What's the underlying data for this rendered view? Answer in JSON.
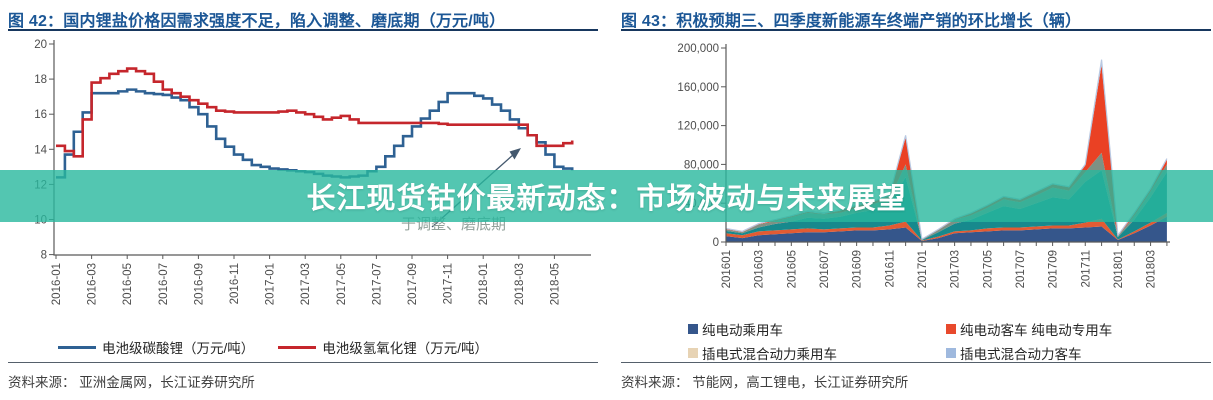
{
  "overlay": {
    "text": "长江现货钴价最新动态：市场波动与未来展望",
    "band_color": "rgba(40,184,157,0.80)"
  },
  "faded_note": "于调整、磨底期",
  "panels": [
    {
      "title": "图 42：国内锂盐价格因需求强度不足，陷入调整、磨底期（万元/吨）",
      "source": "资料来源： 亚洲金属网，长江证券研究所"
    },
    {
      "title": "图 43：积极预期三、四季度新能源车终端产销的环比增长（辆）",
      "source": "资料来源： 节能网，高工锂电，长江证券研究所"
    }
  ],
  "chart_data": [
    {
      "type": "line",
      "title": "图 42：国内锂盐价格因需求强度不足，陷入调整、磨底期（万元/吨）",
      "unit": "万元/吨",
      "grid": false,
      "legend_position": "bottom",
      "x": [
        "2016-01",
        "2016-02",
        "2016-03",
        "2016-04",
        "2016-05",
        "2016-06",
        "2016-07",
        "2016-08",
        "2016-09",
        "2016-10",
        "2016-11",
        "2016-12",
        "2017-01",
        "2017-02",
        "2017-03",
        "2017-04",
        "2017-05",
        "2017-06",
        "2017-07",
        "2017-08",
        "2017-09",
        "2017-10",
        "2017-11",
        "2017-12",
        "2018-01",
        "2018-02",
        "2018-03",
        "2018-04",
        "2018-05",
        "2018-06"
      ],
      "x_tick_labels": [
        "2016-01",
        "2016-03",
        "2016-05",
        "2016-07",
        "2016-09",
        "2016-11",
        "2017-01",
        "2017-03",
        "2017-05",
        "2017-07",
        "2017-09",
        "2017-11",
        "2018-01",
        "2018-03",
        "2018-05"
      ],
      "ylim": [
        8,
        20
      ],
      "yticks": [
        8,
        10,
        12,
        14,
        16,
        18,
        20
      ],
      "series": [
        {
          "name": "电池级碳酸锂（万元/吨）",
          "color": "#2e6193",
          "values": [
            12.4,
            15.0,
            17.2,
            17.2,
            17.4,
            17.2,
            17.1,
            16.8,
            16.0,
            14.6,
            13.7,
            13.1,
            12.9,
            12.8,
            12.7,
            12.5,
            12.4,
            12.5,
            13.0,
            14.2,
            15.3,
            16.2,
            17.2,
            17.2,
            16.9,
            16.2,
            15.2,
            14.4,
            13.0,
            12.8
          ]
        },
        {
          "name": "电池级氢氧化锂（万元/吨）",
          "color": "#c5262c",
          "values": [
            14.2,
            13.6,
            17.8,
            18.3,
            18.6,
            18.3,
            17.4,
            17.0,
            16.6,
            16.2,
            16.1,
            16.1,
            16.1,
            16.2,
            16.0,
            15.7,
            15.9,
            15.5,
            15.5,
            15.5,
            15.5,
            15.5,
            15.4,
            15.4,
            15.4,
            15.4,
            15.4,
            14.2,
            14.2,
            14.5
          ]
        }
      ],
      "legend": [
        {
          "label": "电池级碳酸锂（万元/吨）",
          "swatch": "#2e6193"
        },
        {
          "label": "电池级氢氧化锂（万元/吨）",
          "swatch": "#c5262c"
        }
      ],
      "annotations": [
        "arrow-pointing-to-2018-price-drop"
      ]
    },
    {
      "type": "area",
      "title": "图 43：积极预期三、四季度新能源车终端产销的环比增长（辆）",
      "unit": "辆",
      "stacked": true,
      "grid": false,
      "legend_position": "bottom",
      "x": [
        "201601",
        "201602",
        "201603",
        "201604",
        "201605",
        "201606",
        "201607",
        "201608",
        "201609",
        "201610",
        "201611",
        "201612",
        "201701",
        "201702",
        "201703",
        "201704",
        "201705",
        "201706",
        "201707",
        "201708",
        "201709",
        "201710",
        "201711",
        "201712",
        "201801",
        "201802",
        "201803",
        "201804"
      ],
      "x_tick_labels": [
        "201601",
        "201603",
        "201605",
        "201607",
        "201609",
        "201611",
        "201701",
        "201703",
        "201705",
        "201707",
        "201709",
        "201711",
        "201801",
        "201803"
      ],
      "ylim": [
        0,
        200000
      ],
      "yticks": [
        0,
        40000,
        80000,
        120000,
        160000,
        200000
      ],
      "ytick_labels": [
        "0",
        "40,000",
        "80,000",
        "120,000",
        "160,000",
        "200,000"
      ],
      "layers": [
        {
          "legend_name": "纯电动乘用车",
          "plot_color": "#35568b",
          "values": [
            6000,
            4000,
            7000,
            8000,
            9000,
            10000,
            10000,
            11000,
            12000,
            12000,
            13000,
            15000,
            1000,
            4000,
            9000,
            10000,
            11000,
            12000,
            12000,
            13000,
            14000,
            14000,
            15000,
            16000,
            2000,
            9000,
            17000,
            26000
          ]
        },
        {
          "legend_name": "纯电动专用车",
          "plot_color": "#e25b33",
          "values": [
            3000,
            3000,
            4000,
            4000,
            4000,
            4000,
            3000,
            3000,
            3000,
            3000,
            4000,
            6000,
            500,
            1500,
            2000,
            2000,
            3000,
            3000,
            3000,
            3000,
            3000,
            3000,
            5000,
            8000,
            500,
            2000,
            3000,
            4000
          ]
        },
        {
          "legend_name": "插电式混合动力乘用车",
          "plot_color": "#17898d",
          "values": [
            2500,
            2000,
            4000,
            6500,
            8000,
            11000,
            11000,
            12000,
            15000,
            18000,
            20000,
            46000,
            600,
            4500,
            8000,
            11000,
            16000,
            22000,
            19000,
            24000,
            29000,
            27000,
            42000,
            50000,
            2500,
            12000,
            26000,
            42000
          ]
        },
        {
          "legend_name": "插电式混合动力客车",
          "plot_color": "#7d9184",
          "values": [
            1500,
            1000,
            3000,
            3000,
            4500,
            5000,
            4500,
            4000,
            5000,
            6000,
            7000,
            13000,
            500,
            2400,
            4000,
            4500,
            5000,
            7000,
            7000,
            8000,
            10000,
            9000,
            10000,
            18000,
            1200,
            4000,
            6000,
            8000
          ]
        },
        {
          "legend_name": "纯电动客车",
          "plot_color": "#ea4124",
          "values": [
            500,
            500,
            400,
            1000,
            1000,
            1000,
            500,
            2500,
            2500,
            2500,
            3500,
            28000,
            200,
            400,
            700,
            2000,
            2500,
            2500,
            2500,
            3500,
            3500,
            3500,
            7000,
            91000,
            500,
            2500,
            2500,
            5000
          ]
        },
        {
          "legend_name": "插电式混合动力客车",
          "plot_color": "#a9c0e2",
          "values": [
            500,
            500,
            600,
            500,
            500,
            1000,
            1000,
            500,
            500,
            500,
            500,
            2000,
            200,
            200,
            300,
            500,
            500,
            500,
            500,
            500,
            500,
            500,
            1000,
            5000,
            300,
            500,
            500,
            1000
          ]
        }
      ],
      "legend": [
        {
          "label": "纯电动乘用车",
          "swatch": "#35568b"
        },
        {
          "label": "纯电动客车 纯电动专用车",
          "swatch": "#e8492c"
        },
        {
          "label": "插电式混合动力乘用车",
          "swatch": "#e7d3b4"
        },
        {
          "label": "插电式混合动力客车",
          "swatch": "#9fb9de"
        }
      ]
    }
  ]
}
